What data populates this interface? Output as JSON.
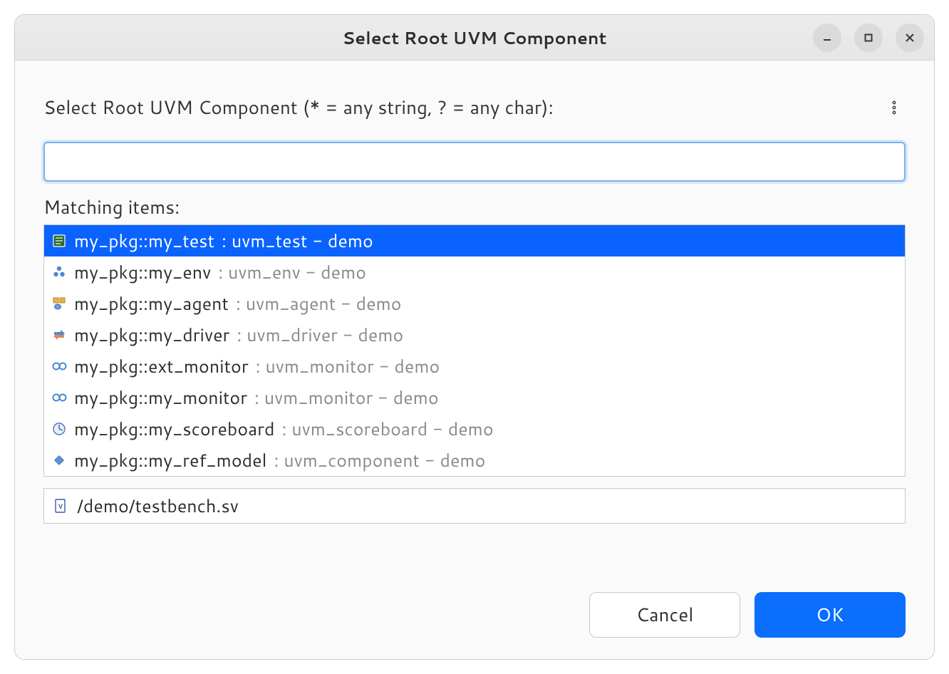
{
  "window": {
    "title": "Select Root UVM Component",
    "controls": {
      "minimize": "minimize",
      "maximize": "maximize",
      "close": "close"
    }
  },
  "prompt": {
    "label": "Select Root UVM Component (* = any string, ? = any char):"
  },
  "search": {
    "value": "",
    "placeholder": ""
  },
  "matching": {
    "label": "Matching items:",
    "items": [
      {
        "icon": "test",
        "primary": "my_pkg::my_test",
        "secondary": " : uvm_test - demo",
        "selected": true
      },
      {
        "icon": "env",
        "primary": "my_pkg::my_env",
        "secondary": " : uvm_env - demo",
        "selected": false
      },
      {
        "icon": "agent",
        "primary": "my_pkg::my_agent",
        "secondary": " : uvm_agent - demo",
        "selected": false
      },
      {
        "icon": "driver",
        "primary": "my_pkg::my_driver",
        "secondary": " : uvm_driver - demo",
        "selected": false
      },
      {
        "icon": "monitor",
        "primary": "my_pkg::ext_monitor",
        "secondary": " : uvm_monitor - demo",
        "selected": false
      },
      {
        "icon": "monitor",
        "primary": "my_pkg::my_monitor",
        "secondary": " : uvm_monitor - demo",
        "selected": false
      },
      {
        "icon": "scoreboard",
        "primary": "my_pkg::my_scoreboard",
        "secondary": " : uvm_scoreboard - demo",
        "selected": false
      },
      {
        "icon": "component",
        "primary": "my_pkg::my_ref_model",
        "secondary": " : uvm_component - demo",
        "selected": false
      }
    ]
  },
  "status": {
    "icon": "sv-file",
    "path": "/demo/testbench.sv"
  },
  "buttons": {
    "cancel": "Cancel",
    "ok": "OK"
  },
  "colors": {
    "selection_bg": "#0a63ff",
    "primary_button_bg": "#0b6efd",
    "input_focus_border": "#78b1ee",
    "secondary_text": "#8a8a8a",
    "border": "#c9c9c9"
  }
}
